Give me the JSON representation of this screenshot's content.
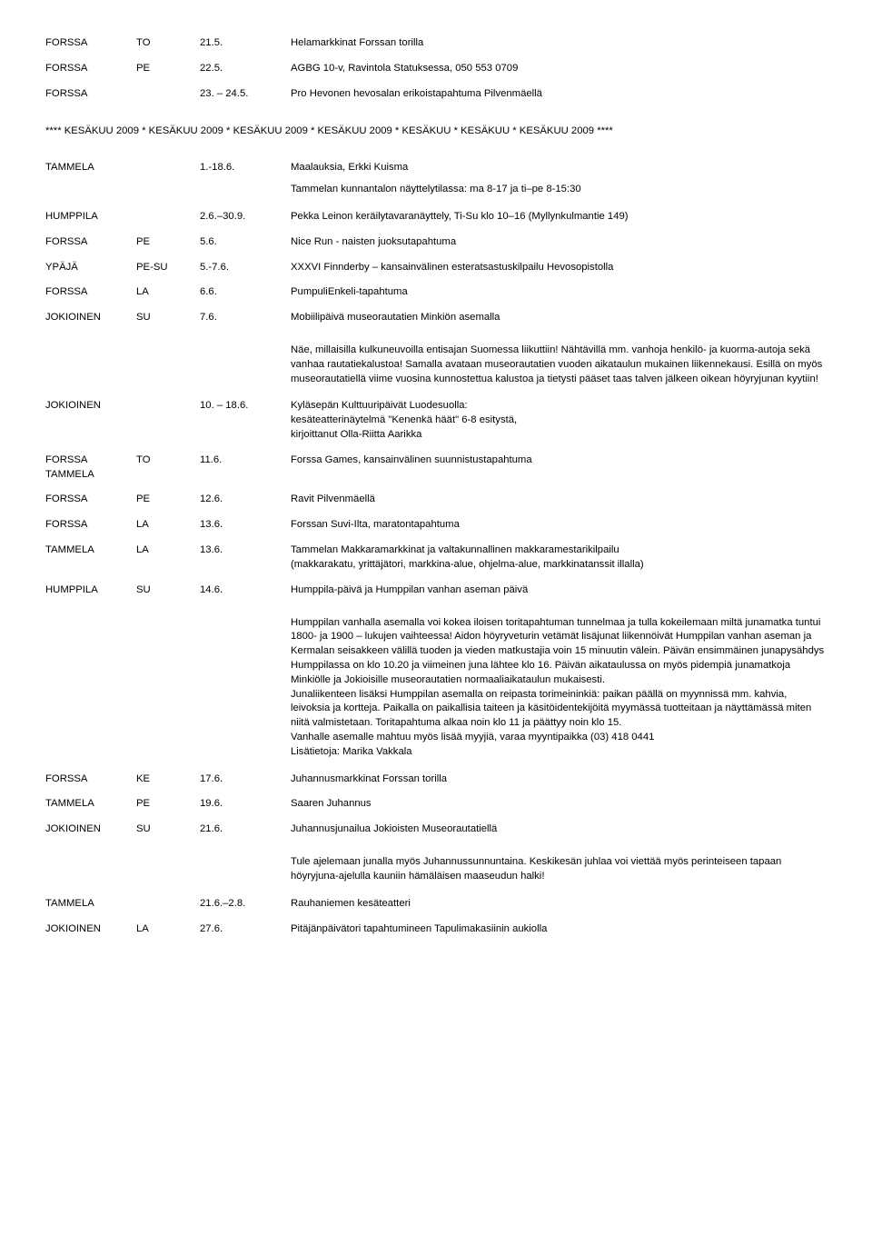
{
  "rows": [
    {
      "c1": "FORSSA",
      "c2": "TO",
      "c3": "21.5.",
      "c4": "Helamarkkinat Forssan torilla"
    },
    {
      "c1": "FORSSA",
      "c2": "PE",
      "c3": "22.5.",
      "c4": "AGBG 10-v, Ravintola Statuksessa, 050 553 0709"
    },
    {
      "c1": "FORSSA",
      "c2": "",
      "c3": "23. – 24.5.",
      "c4": "Pro Hevonen hevosalan erikoistapahtuma Pilvenmäellä"
    }
  ],
  "section": "**** KESÄKUU 2009 * KESÄKUU 2009 * KESÄKUU 2009 * KESÄKUU 2009 * KESÄKUU * KESÄKUU * KESÄKUU 2009 ****",
  "rows2": [
    {
      "c1": "TAMMELA",
      "c2": "",
      "c3": "1.-18.6.",
      "c4": "Maalauksia, Erkki Kuisma"
    }
  ],
  "block1": "Tammelan kunnantalon näyttelytilassa: ma 8-17 ja ti–pe 8-15:30",
  "rows3": [
    {
      "c1": "HUMPPILA",
      "c2": "",
      "c3": "2.6.–30.9.",
      "c4": "Pekka Leinon keräilytavaranäyttely, Ti-Su klo 10–16 (Myllynkulmantie 149)"
    },
    {
      "c1": "FORSSA",
      "c2": "PE",
      "c3": "5.6.",
      "c4": "Nice Run - naisten juoksutapahtuma"
    },
    {
      "c1": "YPÄJÄ",
      "c2": "PE-SU",
      "c3": "5.-7.6.",
      "c4": "XXXVI Finnderby – kansainvälinen esteratsastuskilpailu Hevosopistolla"
    },
    {
      "c1": "FORSSA",
      "c2": "LA",
      "c3": "6.6.",
      "c4": "PumpuliEnkeli-tapahtuma"
    },
    {
      "c1": "JOKIOINEN",
      "c2": "SU",
      "c3": "7.6.",
      "c4": "Mobiilipäivä museorautatien Minkiön asemalla"
    }
  ],
  "block2": "Näe, millaisilla kulkuneuvoilla entisajan Suomessa liikuttiin! Nähtävillä mm. vanhoja henkilö- ja kuorma-autoja sekä vanhaa rautatiekalustoa! Samalla avataan museorautatien vuoden aikataulun mukainen liikennekausi. Esillä on myös museorautatiellä viime vuosina kunnostettua kalustoa ja tietysti pääset taas talven jälkeen oikean höyryjunan kyytiin!",
  "rows4": [
    {
      "c1": "JOKIOINEN",
      "c2": "",
      "c3": "10. – 18.6.",
      "c4": "Kyläsepän Kulttuuripäivät Luodesuolla:\nkesäteatterinäytelmä \"Kenenkä häät\" 6-8 esitystä,\nkirjoittanut Olla-Riitta Aarikka"
    }
  ],
  "rows5": [
    {
      "c1": "FORSSA\nTAMMELA",
      "c2": "TO",
      "c3": "11.6.",
      "c4": "Forssa Games, kansainvälinen suunnistustapahtuma"
    },
    {
      "c1": "FORSSA",
      "c2": "PE",
      "c3": "12.6.",
      "c4": "Ravit Pilvenmäellä"
    },
    {
      "c1": "FORSSA",
      "c2": "LA",
      "c3": "13.6.",
      "c4": "Forssan Suvi-Ilta, maratontapahtuma"
    },
    {
      "c1": "TAMMELA",
      "c2": "LA",
      "c3": "13.6.",
      "c4": "Tammelan Makkaramarkkinat ja valtakunnallinen makkaramestarikilpailu\n(makkarakatu, yrittäjätori, markkina-alue, ohjelma-alue, markkinatanssit illalla)"
    },
    {
      "c1": "HUMPPILA",
      "c2": "SU",
      "c3": "14.6.",
      "c4": "Humppila-päivä ja Humppilan vanhan aseman päivä"
    }
  ],
  "block3": "Humppilan vanhalla asemalla voi kokea iloisen toritapahtuman tunnelmaa ja tulla kokeilemaan miltä junamatka tuntui 1800- ja 1900 – lukujen vaihteessa! Aidon höyryveturin vetämät lisäjunat liikennöivät Humppilan vanhan aseman ja Kermalan seisakkeen välillä tuoden ja vieden matkustajia voin 15 minuutin välein. Päivän ensimmäinen junapysähdys Humppilassa on klo 10.20 ja viimeinen juna lähtee klo 16. Päivän aikataulussa on myös pidempiä junamatkoja Minkiölle ja Jokioisille museorautatien normaaliaikataulun mukaisesti.\nJunaliikenteen lisäksi Humppilan asemalla on reipasta torimeininkiä: paikan päällä on myynnissä mm. kahvia, leivoksia ja kortteja. Paikalla on paikallisia taiteen ja käsitöidentekijöitä myymässä tuotteitaan ja näyttämässä miten niitä valmistetaan. Toritapahtuma alkaa noin klo 11 ja päättyy noin klo 15.\nVanhalle asemalle mahtuu myös lisää myyjiä, varaa myyntipaikka (03) 418 0441\nLisätietoja: Marika Vakkala",
  "rows6": [
    {
      "c1": "FORSSA",
      "c2": "KE",
      "c3": "17.6.",
      "c4": "Juhannusmarkkinat Forssan torilla"
    },
    {
      "c1": "TAMMELA",
      "c2": "PE",
      "c3": "19.6.",
      "c4": "Saaren Juhannus"
    },
    {
      "c1": "JOKIOINEN",
      "c2": "SU",
      "c3": "21.6.",
      "c4": "Juhannusjunailua Jokioisten Museorautatiellä"
    }
  ],
  "block4": "Tule ajelemaan junalla myös Juhannussunnuntaina. Keskikesän juhlaa voi viettää myös perinteiseen tapaan höyryjuna-ajelulla kauniin hämäläisen maaseudun halki!",
  "rows7": [
    {
      "c1": "TAMMELA",
      "c2": "",
      "c3": "21.6.–2.8.",
      "c4": "Rauhaniemen kesäteatteri"
    },
    {
      "c1": "JOKIOINEN",
      "c2": "LA",
      "c3": "27.6.",
      "c4": "Pitäjänpäivätori tapahtumineen Tapulimakasiinin aukiolla"
    }
  ]
}
